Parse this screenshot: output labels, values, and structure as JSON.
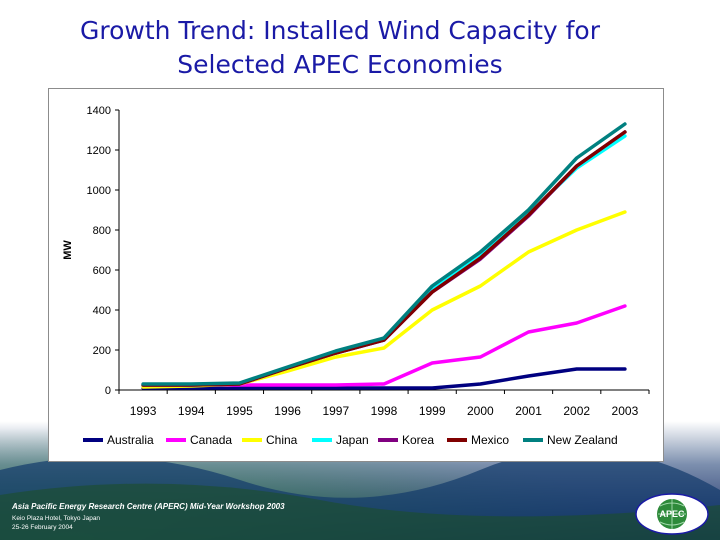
{
  "slide": {
    "title_line1": "Growth Trend: Installed Wind Capacity for",
    "title_line2": "Selected APEC Economies"
  },
  "footer": {
    "title": "Asia Pacific Energy Research Centre (APERC) Mid-Year Workshop 2003",
    "venue": "Keio Plaza Hotel, Tokyo Japan",
    "dates": "25-26 February 2004",
    "logo_text": "APEC"
  },
  "colors": {
    "title": "#1a1aa6",
    "background_dark": "#0b1f5c",
    "background_green": "#2e8a3a"
  },
  "chart_data": {
    "type": "line",
    "title": "",
    "xlabel": "",
    "ylabel": "MW",
    "x": [
      "1993",
      "1994",
      "1995",
      "1996",
      "1997",
      "1998",
      "1999",
      "2000",
      "2001",
      "2002",
      "2003"
    ],
    "ylim": [
      0,
      1400
    ],
    "yticks": [
      0,
      200,
      400,
      600,
      800,
      1000,
      1200,
      1400
    ],
    "grid": false,
    "legend_position": "bottom",
    "series": [
      {
        "name": "Australia",
        "color": "#000080",
        "values": [
          10,
          10,
          10,
          10,
          10,
          10,
          10,
          30,
          70,
          105,
          105
        ]
      },
      {
        "name": "Canada",
        "color": "#ff00ff",
        "values": [
          25,
          25,
          25,
          25,
          25,
          30,
          135,
          165,
          290,
          335,
          420
        ]
      },
      {
        "name": "China",
        "color": "#ffff00",
        "values": [
          15,
          20,
          30,
          95,
          165,
          210,
          400,
          520,
          690,
          800,
          890
        ]
      },
      {
        "name": "Japan",
        "color": "#00ffff",
        "values": [
          25,
          25,
          30,
          110,
          185,
          250,
          510,
          680,
          880,
          1110,
          1270
        ]
      },
      {
        "name": "Korea",
        "color": "#800080",
        "values": [
          25,
          25,
          30,
          110,
          185,
          250,
          490,
          655,
          870,
          1120,
          1290
        ]
      },
      {
        "name": "Mexico",
        "color": "#800000",
        "values": [
          25,
          25,
          30,
          110,
          185,
          250,
          490,
          660,
          875,
          1120,
          1290
        ]
      },
      {
        "name": "New Zealand",
        "color": "#008080",
        "values": [
          30,
          30,
          35,
          115,
          195,
          260,
          520,
          690,
          900,
          1160,
          1330
        ]
      }
    ]
  }
}
